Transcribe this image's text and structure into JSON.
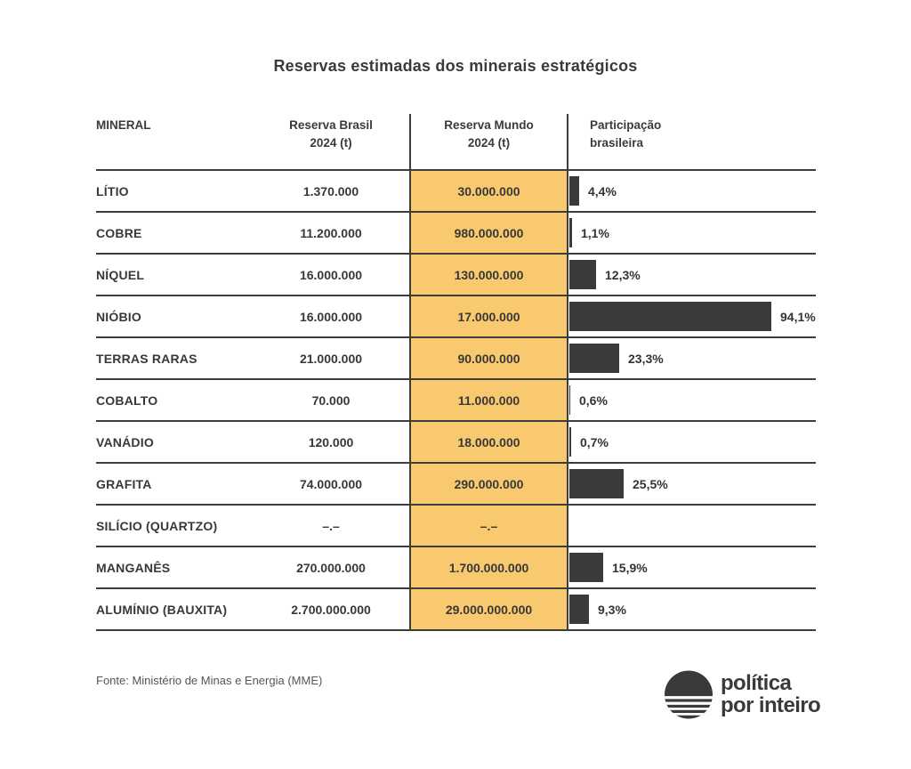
{
  "page": {
    "title": "Reservas estimadas dos minerais estratégicos"
  },
  "colors": {
    "accent_yellow": "#F8C96E",
    "bar_dark": "#3A3A3A",
    "line_dark": "#3D3D3D",
    "text_dark": "#383838"
  },
  "table": {
    "headers": {
      "mineral": "MINERAL",
      "brasil_line1": "Reserva Brasil",
      "brasil_line2": "2024 (t)",
      "mundo_line1": "Reserva Mundo",
      "mundo_line2": "2024 (t)",
      "part_line1": "Participação",
      "part_line2": "brasileira"
    },
    "rows": [
      {
        "mineral": "LÍTIO",
        "brasil": "1.370.000",
        "mundo": "30.000.000",
        "pct_label": "4,4%",
        "pct": 4.4
      },
      {
        "mineral": "COBRE",
        "brasil": "11.200.000",
        "mundo": "980.000.000",
        "pct_label": "1,1%",
        "pct": 1.1
      },
      {
        "mineral": "NÍQUEL",
        "brasil": "16.000.000",
        "mundo": "130.000.000",
        "pct_label": "12,3%",
        "pct": 12.3
      },
      {
        "mineral": "NIÓBIO",
        "brasil": "16.000.000",
        "mundo": "17.000.000",
        "pct_label": "94,1%",
        "pct": 94.1
      },
      {
        "mineral": "TERRAS RARAS",
        "brasil": "21.000.000",
        "mundo": "90.000.000",
        "pct_label": "23,3%",
        "pct": 23.3
      },
      {
        "mineral": "COBALTO",
        "brasil": "70.000",
        "mundo": "11.000.000",
        "pct_label": "0,6%",
        "pct": 0.6
      },
      {
        "mineral": "VANÁDIO",
        "brasil": "120.000",
        "mundo": "18.000.000",
        "pct_label": "0,7%",
        "pct": 0.7
      },
      {
        "mineral": "GRAFITA",
        "brasil": "74.000.000",
        "mundo": "290.000.000",
        "pct_label": "25,5%",
        "pct": 25.5
      },
      {
        "mineral": "SILÍCIO (QUARTZO)",
        "brasil": "–.–",
        "mundo": "–.–",
        "pct_label": "",
        "pct": null
      },
      {
        "mineral": "MANGANÊS",
        "brasil": "270.000.000",
        "mundo": "1.700.000.000",
        "pct_label": "15,9%",
        "pct": 15.9
      },
      {
        "mineral": "ALUMÍNIO (BAUXITA)",
        "brasil": "2.700.000.000",
        "mundo": "29.000.000.000",
        "pct_label": "9,3%",
        "pct": 9.3
      }
    ]
  },
  "footer": {
    "source": "Fonte: Ministério de Minas e Energia (MME)",
    "logo_line1": "política",
    "logo_line2": "por inteiro"
  },
  "chart_data": {
    "type": "table",
    "title": "Reservas estimadas dos minerais estratégicos",
    "columns": [
      "Mineral",
      "Reserva Brasil 2024 (t)",
      "Reserva Mundo 2024 (t)",
      "Participação brasileira (%)"
    ],
    "rows": [
      [
        "LÍTIO",
        1370000,
        30000000,
        4.4
      ],
      [
        "COBRE",
        11200000,
        980000000,
        1.1
      ],
      [
        "NÍQUEL",
        16000000,
        130000000,
        12.3
      ],
      [
        "NIÓBIO",
        16000000,
        17000000,
        94.1
      ],
      [
        "TERRAS RARAS",
        21000000,
        90000000,
        23.3
      ],
      [
        "COBALTO",
        70000,
        11000000,
        0.6
      ],
      [
        "VANÁDIO",
        120000,
        18000000,
        0.7
      ],
      [
        "GRAFITA",
        74000000,
        290000000,
        25.5
      ],
      [
        "SILÍCIO (QUARTZO)",
        null,
        null,
        null
      ],
      [
        "MANGANÊS",
        270000000,
        1700000000,
        15.9
      ],
      [
        "ALUMÍNIO (BAUXITA)",
        2700000000,
        29000000000,
        9.3
      ]
    ],
    "bar_column": "Participação brasileira (%)",
    "bar_range": [
      0,
      100
    ],
    "bar_color": "#3A3A3A",
    "highlight_column": "Reserva Mundo 2024 (t)",
    "highlight_color": "#F8C96E",
    "source": "Fonte: Ministério de Minas e Energia (MME)"
  }
}
